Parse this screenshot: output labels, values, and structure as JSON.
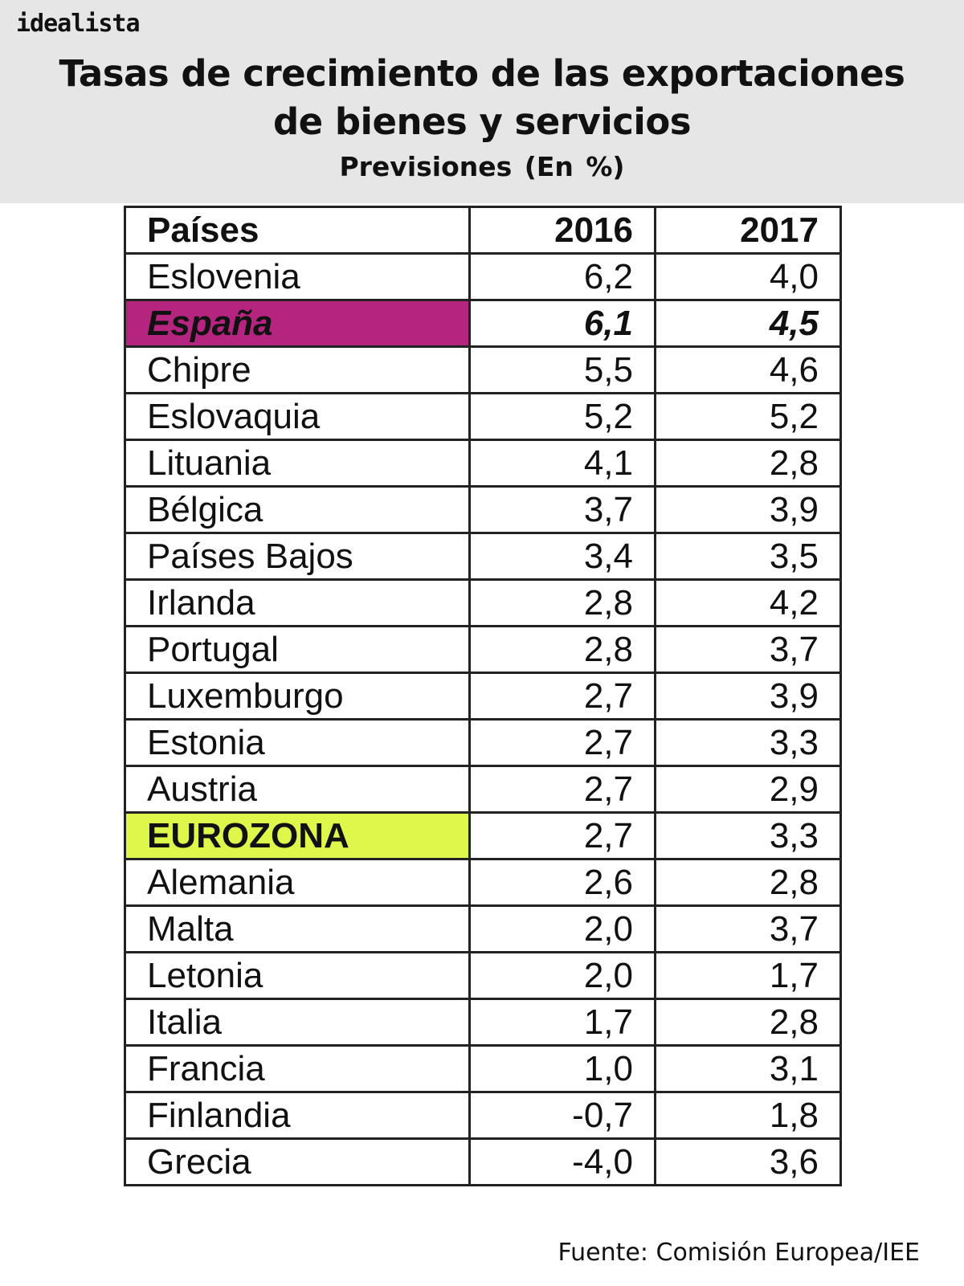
{
  "header": {
    "logo": "idealista",
    "title_line1": "Tasas de crecimiento de las exportaciones",
    "title_line2": "de bienes y servicios",
    "subtitle": "Previsiones  (En %)"
  },
  "table": {
    "columns": [
      "Países",
      "2016",
      "2017"
    ],
    "rows": [
      {
        "country": "Eslovenia",
        "y2016": "6,2",
        "y2017": "4,0"
      },
      {
        "country": "España",
        "y2016": "6,1",
        "y2017": "4,5"
      },
      {
        "country": "Chipre",
        "y2016": "5,5",
        "y2017": "4,6"
      },
      {
        "country": "Eslovaquia",
        "y2016": "5,2",
        "y2017": "5,2"
      },
      {
        "country": "Lituania",
        "y2016": "4,1",
        "y2017": "2,8"
      },
      {
        "country": "Bélgica",
        "y2016": "3,7",
        "y2017": "3,9"
      },
      {
        "country": "Países Bajos",
        "y2016": "3,4",
        "y2017": "3,5"
      },
      {
        "country": "Irlanda",
        "y2016": "2,8",
        "y2017": "4,2"
      },
      {
        "country": "Portugal",
        "y2016": "2,8",
        "y2017": "3,7"
      },
      {
        "country": "Luxemburgo",
        "y2016": "2,7",
        "y2017": "3,9"
      },
      {
        "country": "Estonia",
        "y2016": "2,7",
        "y2017": "3,3"
      },
      {
        "country": "Austria",
        "y2016": "2,7",
        "y2017": "2,9"
      },
      {
        "country": "EUROZONA",
        "y2016": "2,7",
        "y2017": "3,3"
      },
      {
        "country": "Alemania",
        "y2016": "2,6",
        "y2017": "2,8"
      },
      {
        "country": "Malta",
        "y2016": "2,0",
        "y2017": "3,7"
      },
      {
        "country": "Letonia",
        "y2016": "2,0",
        "y2017": "1,7"
      },
      {
        "country": "Italia",
        "y2016": "1,7",
        "y2017": "2,8"
      },
      {
        "country": "Francia",
        "y2016": "1,0",
        "y2017": "3,1"
      },
      {
        "country": "Finlandia",
        "y2016": "-0,7",
        "y2017": "1,8"
      },
      {
        "country": "Grecia",
        "y2016": "-4,0",
        "y2017": "3,6"
      }
    ],
    "highlight_colors": {
      "España": "#b5257f",
      "EUROZONA": "#dff64a"
    }
  },
  "source": "Fuente: Comisión Europea/IEE",
  "chart_data": {
    "type": "table",
    "title": "Tasas de crecimiento de las exportaciones de bienes y servicios",
    "subtitle": "Previsiones (En %)",
    "categories": [
      "Eslovenia",
      "España",
      "Chipre",
      "Eslovaquia",
      "Lituania",
      "Bélgica",
      "Países Bajos",
      "Irlanda",
      "Portugal",
      "Luxemburgo",
      "Estonia",
      "Austria",
      "EUROZONA",
      "Alemania",
      "Malta",
      "Letonia",
      "Italia",
      "Francia",
      "Finlandia",
      "Grecia"
    ],
    "series": [
      {
        "name": "2016",
        "values": [
          6.2,
          6.1,
          5.5,
          5.2,
          4.1,
          3.7,
          3.4,
          2.8,
          2.8,
          2.7,
          2.7,
          2.7,
          2.7,
          2.6,
          2.0,
          2.0,
          1.7,
          1.0,
          -0.7,
          -4.0
        ]
      },
      {
        "name": "2017",
        "values": [
          4.0,
          4.5,
          4.6,
          5.2,
          2.8,
          3.9,
          3.5,
          4.2,
          3.7,
          3.9,
          3.3,
          2.9,
          3.3,
          2.8,
          3.7,
          1.7,
          2.8,
          3.1,
          1.8,
          3.6
        ]
      }
    ],
    "source": "Fuente: Comisión Europea/IEE"
  }
}
